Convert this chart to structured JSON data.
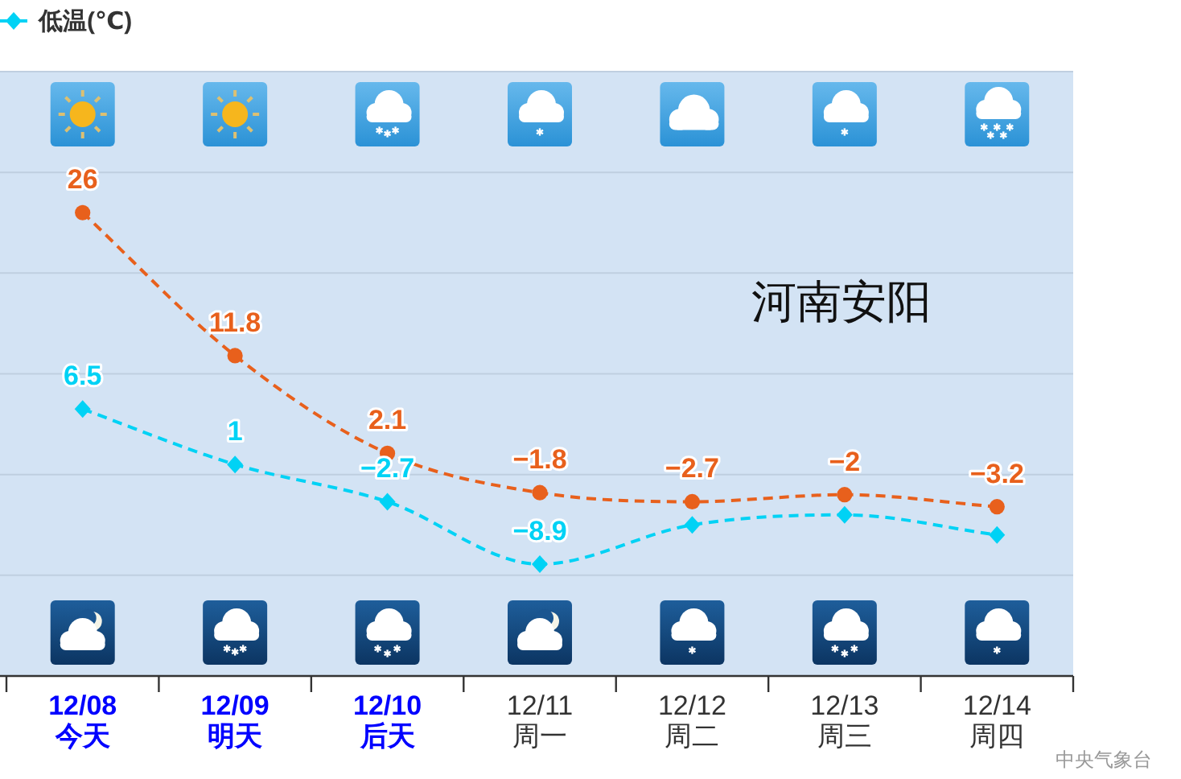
{
  "chart_data": {
    "type": "line",
    "title": "河南安阳",
    "categories": [
      "12/08\n今天",
      "12/09\n明天",
      "12/10\n后天",
      "12/11\n周一",
      "12/12\n周二",
      "12/13\n周三",
      "12/14\n周四"
    ],
    "series": [
      {
        "color": "#e8601c",
        "marker": "circle",
        "values": [
          26,
          11.8,
          2.1,
          -1.8,
          -2.7,
          -2,
          -3.2
        ],
        "value_labels": [
          "26",
          "11.8",
          "2.1",
          "−1.8",
          "−2.7",
          "−2",
          "−3.2"
        ]
      },
      {
        "name": "低温(℃)",
        "color": "#00d2f5",
        "marker": "diamond",
        "values": [
          6.5,
          1,
          -2.7,
          -8.9,
          -5,
          -4,
          -6
        ],
        "value_labels": [
          "6.5",
          "1",
          "−2.7",
          "−8.9",
          null,
          null,
          null
        ]
      }
    ],
    "ylim": [
      -20,
      40
    ],
    "yticks": [
      {
        "value": -20,
        "label": null
      },
      {
        "value": -10,
        "label": null
      },
      {
        "value": 0,
        "label": null
      },
      {
        "value": 10,
        "label": null
      },
      {
        "value": 20,
        "label": null
      },
      {
        "value": 30,
        "label": null
      },
      {
        "value": 40,
        "label": null
      }
    ],
    "grid": "y",
    "tick_labels": "x",
    "legend": "top left",
    "line_style": "dashed",
    "annotations": [
      "中央气象台"
    ]
  }
}
